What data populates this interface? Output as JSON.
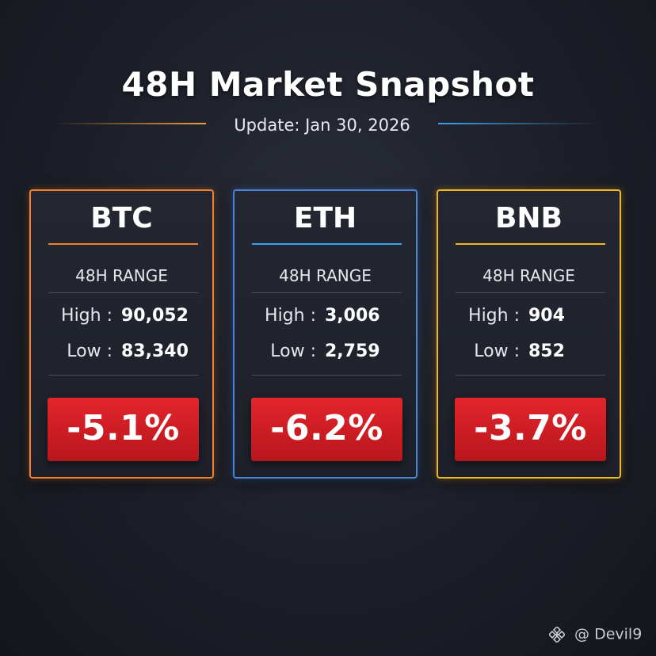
{
  "header": {
    "title": "48H Market Snapshot",
    "subtitle": "Update: Jan 30, 2026"
  },
  "cards": [
    {
      "coin": "BTC",
      "range_label": "48H RANGE",
      "high_label": "High :",
      "high_value": "90,052",
      "low_label": "Low :",
      "low_value": "83,340",
      "change": "-5.1%",
      "accent_color": "#f2812e"
    },
    {
      "coin": "ETH",
      "range_label": "48H RANGE",
      "high_label": "High :",
      "high_value": "3,006",
      "low_label": "Low :",
      "low_value": "2,759",
      "change": "-6.2%",
      "accent_color": "#4a86d8"
    },
    {
      "coin": "BNB",
      "range_label": "48H RANGE",
      "high_label": "High :",
      "high_value": "904",
      "low_label": "Low :",
      "low_value": "852",
      "change": "-3.7%",
      "accent_color": "#f1b820"
    }
  ],
  "watermark": {
    "text": "@ Devil9",
    "icon": "binance-logo-icon"
  },
  "colors": {
    "negative": "#d81f26",
    "background": "#1c1f28"
  }
}
